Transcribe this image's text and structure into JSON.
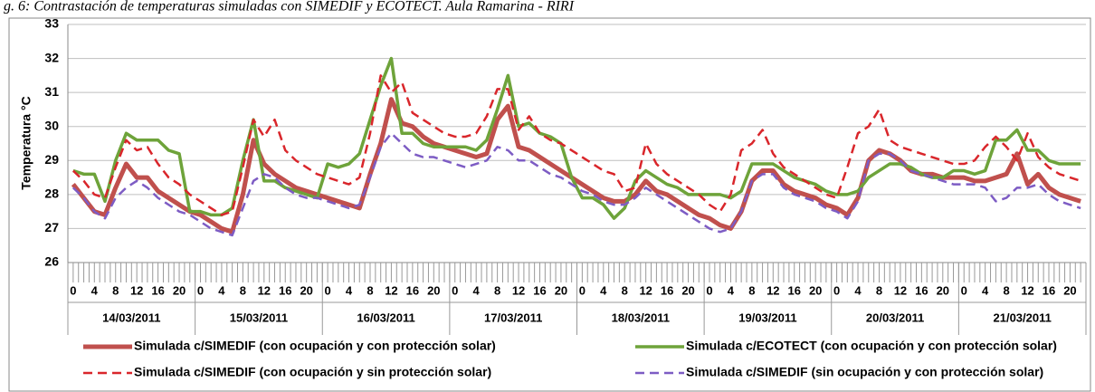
{
  "chart_data": {
    "type": "line",
    "title": "g. 6: Contrastación de temperaturas simuladas con SIMEDIF y ECOTECT. Aula Ramarina - RIRI",
    "y_label": "Temperatura °C",
    "categories": [
      "0",
      null,
      "4",
      null,
      "8",
      null,
      "12",
      null,
      "16",
      null,
      "20",
      null,
      "0",
      null,
      "4",
      null,
      "8",
      null,
      "12",
      null,
      "16",
      null,
      "20",
      null,
      "0",
      null,
      "4",
      null,
      "8",
      null,
      "12",
      null,
      "16",
      null,
      "20",
      null,
      "0",
      null,
      "4",
      null,
      "8",
      null,
      "12",
      null,
      "16",
      null,
      "20",
      null,
      "0",
      null,
      "4",
      null,
      "8",
      null,
      "12",
      null,
      "16",
      null,
      "20",
      null,
      "0",
      null,
      "4",
      null,
      "8",
      null,
      "12",
      null,
      "16",
      null,
      "20",
      null,
      "0",
      null,
      "4",
      null,
      "8",
      null,
      "12",
      null,
      "16",
      null,
      "20",
      null,
      "0",
      null,
      "4",
      null,
      "8",
      null,
      "12",
      null,
      "16",
      null,
      "20",
      null
    ],
    "groups": [
      "14/03/2011",
      "15/03/2011",
      "16/03/2011",
      "17/03/2011",
      "18/03/2011",
      "19/03/2011",
      "20/03/2011",
      "21/03/2011"
    ],
    "ylim": [
      26,
      33
    ],
    "yticks": [
      26,
      27,
      28,
      29,
      30,
      31,
      32,
      33
    ],
    "grid": true,
    "series": [
      {
        "name": "Simulada c/SIMEDIF (con ocupación y con protección solar)",
        "color": "#c0504d",
        "linestyle": "solid",
        "width": 5,
        "values": [
          28.3,
          27.9,
          27.5,
          27.4,
          28.2,
          28.9,
          28.5,
          28.5,
          28.1,
          27.9,
          27.7,
          27.5,
          27.4,
          27.2,
          27.0,
          26.9,
          28.0,
          29.6,
          28.9,
          28.6,
          28.4,
          28.2,
          28.1,
          28.0,
          27.9,
          27.8,
          27.7,
          27.6,
          28.6,
          29.5,
          30.8,
          30.1,
          30.0,
          29.7,
          29.5,
          29.4,
          29.3,
          29.2,
          29.1,
          29.2,
          30.2,
          30.6,
          29.4,
          29.3,
          29.1,
          28.9,
          28.7,
          28.5,
          28.3,
          28.1,
          27.9,
          27.8,
          27.8,
          28.0,
          28.4,
          28.1,
          28.0,
          27.8,
          27.6,
          27.4,
          27.3,
          27.1,
          27.0,
          27.5,
          28.4,
          28.7,
          28.7,
          28.3,
          28.1,
          28.0,
          27.9,
          27.7,
          27.6,
          27.4,
          27.9,
          29.0,
          29.3,
          29.2,
          29.0,
          28.7,
          28.6,
          28.6,
          28.5,
          28.5,
          28.5,
          28.4,
          28.4,
          28.5,
          28.6,
          29.2,
          28.3,
          28.6,
          28.2,
          28.0,
          27.9,
          27.8
        ]
      },
      {
        "name": "Simulada c/ECOTECT (con ocupación y con protección solar)",
        "color": "#6ea33a",
        "linestyle": "solid",
        "width": 3.5,
        "values": [
          28.7,
          28.6,
          28.6,
          27.8,
          29.0,
          29.8,
          29.6,
          29.6,
          29.6,
          29.3,
          29.2,
          27.5,
          27.5,
          27.4,
          27.4,
          27.6,
          29.0,
          30.2,
          28.4,
          28.4,
          28.2,
          28.1,
          28.0,
          27.9,
          28.9,
          28.8,
          28.9,
          29.2,
          30.2,
          31.2,
          32.0,
          29.8,
          29.8,
          29.5,
          29.4,
          29.4,
          29.4,
          29.4,
          29.3,
          29.6,
          30.5,
          31.5,
          30.0,
          30.1,
          29.8,
          29.7,
          29.5,
          28.5,
          27.9,
          27.9,
          27.7,
          27.3,
          27.6,
          28.4,
          28.7,
          28.5,
          28.3,
          28.2,
          28.0,
          28.0,
          28.0,
          28.0,
          27.9,
          28.1,
          28.9,
          28.9,
          28.9,
          28.7,
          28.5,
          28.4,
          28.3,
          28.1,
          28.0,
          28.0,
          28.1,
          28.5,
          28.7,
          28.9,
          28.9,
          28.8,
          28.6,
          28.5,
          28.5,
          28.7,
          28.7,
          28.6,
          28.7,
          29.6,
          29.6,
          29.9,
          29.3,
          29.3,
          29.0,
          28.9,
          28.9,
          28.9
        ]
      },
      {
        "name": "Simulada c/SIMEDIF (con ocupación y sin protección solar)",
        "color": "#d9262b",
        "linestyle": "dashed",
        "width": 2.5,
        "values": [
          28.7,
          28.4,
          28.0,
          27.9,
          28.8,
          29.6,
          29.3,
          29.4,
          28.9,
          28.5,
          28.3,
          28.0,
          27.8,
          27.6,
          27.4,
          27.5,
          28.8,
          30.2,
          29.7,
          30.2,
          29.3,
          29.0,
          28.8,
          28.6,
          28.5,
          28.4,
          28.3,
          28.5,
          29.8,
          31.5,
          31.0,
          31.3,
          30.4,
          30.2,
          30.0,
          29.8,
          29.7,
          29.7,
          29.8,
          30.3,
          31.1,
          31.1,
          29.9,
          30.3,
          29.8,
          29.6,
          29.5,
          29.3,
          29.1,
          28.9,
          28.7,
          28.6,
          28.1,
          28.2,
          29.5,
          28.9,
          28.6,
          28.4,
          28.2,
          28.0,
          27.7,
          27.5,
          28.0,
          29.3,
          29.5,
          29.9,
          29.2,
          28.8,
          28.6,
          28.4,
          28.2,
          28.0,
          27.9,
          28.8,
          29.8,
          30.0,
          30.5,
          29.6,
          29.4,
          29.3,
          29.2,
          29.1,
          29.0,
          28.9,
          28.9,
          29.0,
          29.4,
          29.7,
          29.4,
          29.0,
          29.8,
          29.1,
          28.8,
          28.6,
          28.5,
          28.4
        ]
      },
      {
        "name": "Simulada c/SIMEDIF (sin ocupación y con protección solar)",
        "color": "#7d5cc4",
        "linestyle": "dashed",
        "width": 2.5,
        "values": [
          28.2,
          27.9,
          27.5,
          27.3,
          27.9,
          28.2,
          28.4,
          28.2,
          27.9,
          27.7,
          27.5,
          27.4,
          27.2,
          27.0,
          26.9,
          26.8,
          27.6,
          28.4,
          28.6,
          28.5,
          28.2,
          28.0,
          27.9,
          27.9,
          27.8,
          27.7,
          27.6,
          27.7,
          28.5,
          29.4,
          29.8,
          29.5,
          29.2,
          29.1,
          29.1,
          29.0,
          28.9,
          28.8,
          28.9,
          29.0,
          29.4,
          29.3,
          29.0,
          29.0,
          28.8,
          28.6,
          28.5,
          28.3,
          28.1,
          28.0,
          27.8,
          27.7,
          27.7,
          27.9,
          28.2,
          28.0,
          27.8,
          27.6,
          27.4,
          27.2,
          27.0,
          26.9,
          27.0,
          27.5,
          28.4,
          28.6,
          28.6,
          28.2,
          28.0,
          27.9,
          27.8,
          27.6,
          27.5,
          27.3,
          27.8,
          29.0,
          29.2,
          29.2,
          29.0,
          28.7,
          28.6,
          28.5,
          28.4,
          28.3,
          28.3,
          28.3,
          28.2,
          27.8,
          27.9,
          28.2,
          28.2,
          28.3,
          28.0,
          27.8,
          27.7,
          27.6
        ]
      }
    ]
  }
}
